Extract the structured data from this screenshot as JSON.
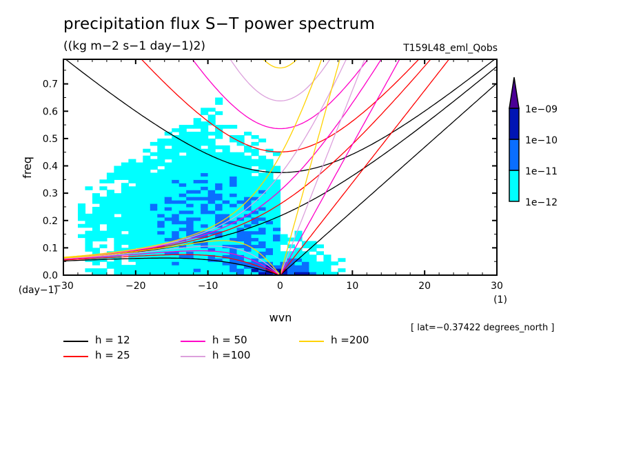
{
  "chart_data": {
    "type": "heatmap",
    "title": "precipitation flux S−T power spectrum",
    "subtitle": "((kg m−2 s−1 day−1)2)",
    "experiment": "T159L48_eml_Qobs",
    "xlabel": "wvn",
    "ylabel": "freq",
    "xunits": "(1)",
    "yunits": "(day−1)",
    "xlim": [
      -30,
      30
    ],
    "ylim": [
      0,
      0.79
    ],
    "xticks": [
      -30,
      -20,
      -10,
      0,
      10,
      20,
      30
    ],
    "xtick_labels": [
      "−30",
      "−20",
      "−10",
      "0",
      "10",
      "20",
      "30"
    ],
    "yticks": [
      0.0,
      0.1,
      0.2,
      0.3,
      0.4,
      0.5,
      0.6,
      0.7
    ],
    "ytick_labels": [
      "0.0",
      "0.1",
      "0.2",
      "0.3",
      "0.4",
      "0.5",
      "0.6",
      "0.7"
    ],
    "annotation": "[ lat=−0.37422 degrees_north ]",
    "colorbar": {
      "levels": [
        1e-12,
        1e-11,
        1e-10,
        1e-09
      ],
      "labels": [
        "1e−12",
        "1e−11",
        "1e−10",
        "1e−09"
      ],
      "colors": [
        "#00ffff",
        "#0a6eff",
        "#0014b4",
        "#4b0096"
      ],
      "extend": "max"
    },
    "dispersion_curves": {
      "equivalent_depths_m": [
        12,
        25,
        50,
        100,
        200
      ],
      "wave_types": [
        "kelvin",
        "equatorial-rossby",
        "mixed-rossby-gravity",
        "inertia-gravity-n1"
      ],
      "legend": [
        {
          "label": "h = 12",
          "depth": 12,
          "color": "#000000"
        },
        {
          "label": "h = 25",
          "depth": 25,
          "color": "#ff0000"
        },
        {
          "label": "h = 50",
          "depth": 50,
          "color": "#ff00c8"
        },
        {
          "label": "h =100",
          "depth": 100,
          "color": "#dca0dc"
        },
        {
          "label": "h =200",
          "depth": 200,
          "color": "#ffd200"
        }
      ]
    },
    "power_regions": [
      {
        "level": "1e-12",
        "description": "broad westward band from wvn -30..0, freq 0..0.72; eastward wvn 0..12, freq 0..0.3"
      },
      {
        "level": "1e-11",
        "description": "patches near wvn -8..3, freq 0..0.2"
      },
      {
        "level": "1e-10",
        "description": "near origin wvn -3..1, freq 0..0.05"
      }
    ]
  }
}
